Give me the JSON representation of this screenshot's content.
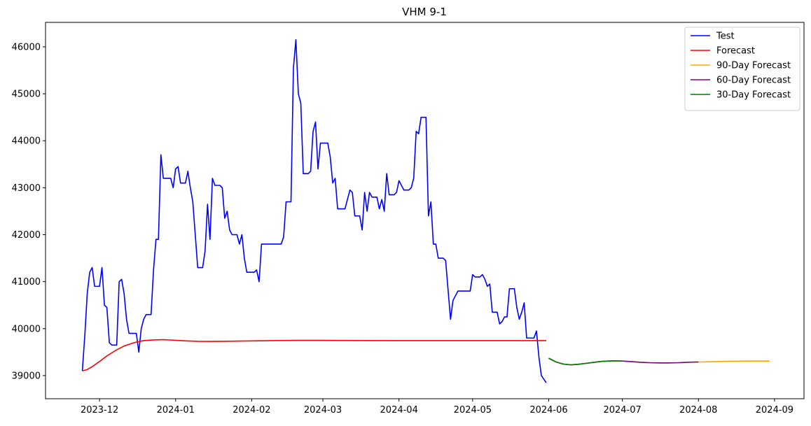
{
  "chart_data": {
    "type": "line",
    "title": "VHM 9-1",
    "xlim": [
      -22,
      287
    ],
    "ylim": [
      38508,
      46520
    ],
    "xticks": [
      {
        "value": 0,
        "label": "2023-12"
      },
      {
        "value": 31,
        "label": "2024-01"
      },
      {
        "value": 62,
        "label": "2024-02"
      },
      {
        "value": 91,
        "label": "2024-03"
      },
      {
        "value": 122,
        "label": "2024-04"
      },
      {
        "value": 152,
        "label": "2024-05"
      },
      {
        "value": 183,
        "label": "2024-06"
      },
      {
        "value": 213,
        "label": "2024-07"
      },
      {
        "value": 244,
        "label": "2024-08"
      },
      {
        "value": 275,
        "label": "2024-09"
      }
    ],
    "yticks": [
      39000,
      40000,
      41000,
      42000,
      43000,
      44000,
      45000,
      46000
    ],
    "legend": "upper right",
    "series": [
      {
        "name": "Test",
        "color": "#0000ff",
        "x": [
          -7,
          -6,
          -5,
          -4,
          -3,
          -2,
          0,
          1,
          2,
          3,
          4,
          5,
          7,
          8,
          9,
          10,
          11,
          12,
          15,
          16,
          17,
          18,
          19,
          21,
          22,
          23,
          24,
          25,
          26,
          29,
          30,
          31,
          32,
          33,
          35,
          36,
          37,
          38,
          39,
          40,
          42,
          43,
          44,
          45,
          46,
          47,
          49,
          50,
          51,
          52,
          53,
          54,
          56,
          57,
          58,
          59,
          60,
          63,
          64,
          65,
          66,
          74,
          75,
          76,
          78,
          79,
          80,
          81,
          82,
          83,
          85,
          86,
          87,
          88,
          89,
          90,
          93,
          94,
          95,
          96,
          97,
          100,
          101,
          102,
          103,
          104,
          106,
          107,
          108,
          109,
          110,
          111,
          113,
          114,
          115,
          116,
          117,
          118,
          120,
          121,
          122,
          123,
          124,
          126,
          127,
          128,
          129,
          130,
          131,
          133,
          134,
          135,
          136,
          137,
          138,
          140,
          141,
          143,
          144,
          145,
          146,
          151,
          152,
          153,
          155,
          156,
          157,
          158,
          159,
          160,
          162,
          163,
          164,
          165,
          166,
          167,
          169,
          170,
          171,
          172,
          173,
          174,
          177,
          178,
          179,
          180,
          182
        ],
        "values": [
          39100,
          39850,
          40750,
          41200,
          41300,
          40900,
          40900,
          41300,
          40500,
          40450,
          39700,
          39650,
          39650,
          41000,
          41050,
          40750,
          40200,
          39900,
          39900,
          39500,
          40000,
          40200,
          40300,
          40300,
          41250,
          41900,
          41900,
          43700,
          43200,
          43200,
          43000,
          43400,
          43450,
          43100,
          43100,
          43350,
          43000,
          42700,
          42000,
          41300,
          41300,
          41650,
          42650,
          41900,
          43200,
          43050,
          43050,
          43000,
          42350,
          42500,
          42100,
          42000,
          42000,
          41800,
          42000,
          41500,
          41200,
          41200,
          41250,
          41000,
          41800,
          41800,
          41950,
          42700,
          42700,
          45550,
          46150,
          45000,
          44800,
          43300,
          43300,
          43350,
          44200,
          44400,
          43400,
          43950,
          43950,
          43650,
          43100,
          43200,
          42550,
          42550,
          42750,
          42950,
          42900,
          42400,
          42400,
          42100,
          42900,
          42500,
          42900,
          42800,
          42800,
          42550,
          42750,
          42500,
          43300,
          42850,
          42850,
          42900,
          43150,
          43050,
          42950,
          42950,
          43000,
          43200,
          44200,
          44150,
          44500,
          44500,
          42400,
          42700,
          41800,
          41800,
          41500,
          41500,
          41450,
          40200,
          40600,
          40700,
          40800,
          40800,
          41150,
          41100,
          41100,
          41150,
          41050,
          40900,
          40950,
          40350,
          40350,
          40100,
          40150,
          40250,
          40250,
          40850,
          40850,
          40450,
          40200,
          40350,
          40550,
          39800,
          39800,
          39950,
          39400,
          39000,
          38850
        ]
      },
      {
        "name": "Forecast",
        "color": "#ff0000",
        "x": [
          -7,
          -5,
          -3,
          0,
          3,
          7,
          10,
          14,
          18,
          22,
          26,
          30,
          35,
          40,
          45,
          50,
          60,
          70,
          80,
          90,
          100,
          120,
          140,
          160,
          182
        ],
        "values": [
          39100,
          39130,
          39190,
          39300,
          39420,
          39550,
          39630,
          39700,
          39745,
          39760,
          39765,
          39755,
          39740,
          39730,
          39728,
          39730,
          39738,
          39745,
          39750,
          39750,
          39748,
          39745,
          39745,
          39745,
          39745
        ]
      },
      {
        "name": "90-Day Forecast",
        "color": "#ffa500",
        "x": [
          183,
          186,
          189,
          192,
          195,
          198,
          201,
          204,
          207,
          210,
          213,
          216,
          220,
          224,
          228,
          232,
          236,
          240,
          244,
          248,
          252,
          256,
          260,
          264,
          268,
          273
        ],
        "values": [
          39370,
          39290,
          39245,
          39230,
          39240,
          39260,
          39280,
          39300,
          39310,
          39315,
          39310,
          39300,
          39285,
          39275,
          39270,
          39270,
          39275,
          39285,
          39290,
          39295,
          39300,
          39305,
          39308,
          39310,
          39310,
          39310
        ]
      },
      {
        "name": "60-Day Forecast",
        "color": "#800080",
        "x": [
          183,
          186,
          189,
          192,
          195,
          198,
          201,
          204,
          207,
          210,
          213,
          216,
          220,
          224,
          228,
          232,
          236,
          240,
          244
        ],
        "values": [
          39370,
          39290,
          39245,
          39230,
          39240,
          39260,
          39280,
          39300,
          39310,
          39315,
          39310,
          39300,
          39285,
          39275,
          39270,
          39270,
          39275,
          39285,
          39290
        ]
      },
      {
        "name": "30-Day Forecast",
        "color": "#008000",
        "x": [
          183,
          186,
          189,
          192,
          195,
          198,
          201,
          204,
          207,
          210,
          213
        ],
        "values": [
          39370,
          39290,
          39245,
          39230,
          39240,
          39260,
          39280,
          39300,
          39310,
          39315,
          39310
        ]
      }
    ]
  }
}
